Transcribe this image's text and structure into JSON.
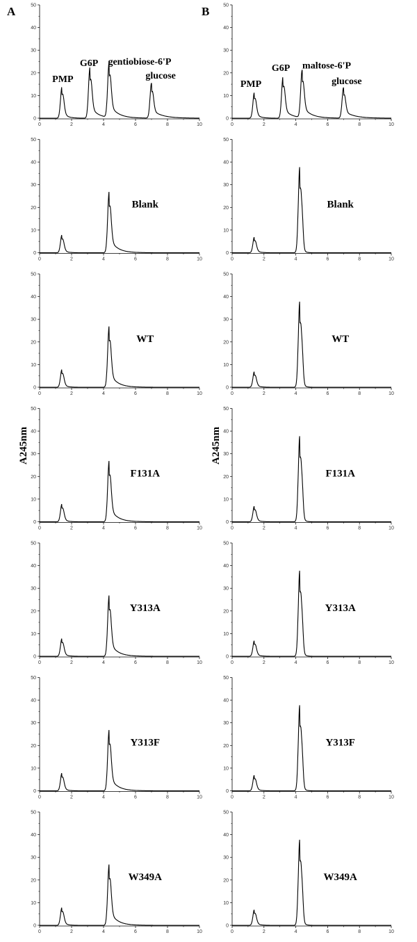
{
  "chart_data": {
    "type": "line",
    "panel_letters": [
      "A",
      "B"
    ],
    "ylabel": "A245nm",
    "xlim": [
      0,
      10
    ],
    "ylim": [
      0,
      50
    ],
    "xticks": [
      "0",
      "2",
      "4",
      "6",
      "8",
      "10"
    ],
    "yticks": [
      "0",
      "10",
      "20",
      "30",
      "40",
      "50"
    ],
    "columns": [
      {
        "letter": "A",
        "standards": {
          "peaks": [
            {
              "name": "PMP",
              "rt": 1.4,
              "height": 14,
              "tail": 0.25
            },
            {
              "name": "G6P",
              "rt": 3.15,
              "height": 22.5,
              "tail": 0.45
            },
            {
              "name": "gentiobiose-6'P",
              "rt": 4.35,
              "height": 24.5,
              "tail": 0.5
            },
            {
              "name": "glucose",
              "rt": 7.0,
              "height": 15.5,
              "tail": 0.6
            }
          ]
        },
        "samples": [
          {
            "label": "Blank",
            "peaks": [
              {
                "rt": 1.4,
                "height": 8,
                "tail": 0.2
              },
              {
                "rt": 4.35,
                "height": 27,
                "tail": 0.45
              }
            ]
          },
          {
            "label": "WT",
            "peaks": [
              {
                "rt": 1.4,
                "height": 8,
                "tail": 0.2
              },
              {
                "rt": 4.35,
                "height": 27,
                "tail": 0.45
              }
            ]
          },
          {
            "label": "F131A",
            "peaks": [
              {
                "rt": 1.4,
                "height": 8,
                "tail": 0.2
              },
              {
                "rt": 4.35,
                "height": 27,
                "tail": 0.45
              }
            ]
          },
          {
            "label": "Y313A",
            "peaks": [
              {
                "rt": 1.4,
                "height": 8,
                "tail": 0.2
              },
              {
                "rt": 4.35,
                "height": 27,
                "tail": 0.45
              }
            ]
          },
          {
            "label": "Y313F",
            "peaks": [
              {
                "rt": 1.4,
                "height": 8,
                "tail": 0.2
              },
              {
                "rt": 4.35,
                "height": 27,
                "tail": 0.45
              }
            ]
          },
          {
            "label": "W349A",
            "peaks": [
              {
                "rt": 1.4,
                "height": 8,
                "tail": 0.2
              },
              {
                "rt": 4.35,
                "height": 27,
                "tail": 0.45
              }
            ]
          }
        ]
      },
      {
        "letter": "B",
        "standards": {
          "peaks": [
            {
              "name": "PMP",
              "rt": 1.4,
              "height": 11.5,
              "tail": 0.25
            },
            {
              "name": "G6P",
              "rt": 3.2,
              "height": 18.5,
              "tail": 0.45
            },
            {
              "name": "maltose-6'P",
              "rt": 4.4,
              "height": 21,
              "tail": 0.5
            },
            {
              "name": "glucose",
              "rt": 7.0,
              "height": 13.5,
              "tail": 0.6
            }
          ]
        },
        "samples": [
          {
            "label": "Blank",
            "peaks": [
              {
                "rt": 1.4,
                "height": 7,
                "tail": 0.2
              },
              {
                "rt": 4.25,
                "height": 38,
                "tail": 0.12
              }
            ]
          },
          {
            "label": "WT",
            "peaks": [
              {
                "rt": 1.4,
                "height": 7,
                "tail": 0.2
              },
              {
                "rt": 4.25,
                "height": 38,
                "tail": 0.12
              }
            ]
          },
          {
            "label": "F131A",
            "peaks": [
              {
                "rt": 1.4,
                "height": 7,
                "tail": 0.2
              },
              {
                "rt": 4.25,
                "height": 38,
                "tail": 0.12
              }
            ]
          },
          {
            "label": "Y313A",
            "peaks": [
              {
                "rt": 1.4,
                "height": 7,
                "tail": 0.2
              },
              {
                "rt": 4.25,
                "height": 38,
                "tail": 0.12
              }
            ]
          },
          {
            "label": "Y313F",
            "peaks": [
              {
                "rt": 1.4,
                "height": 7,
                "tail": 0.2
              },
              {
                "rt": 4.25,
                "height": 38,
                "tail": 0.12
              }
            ]
          },
          {
            "label": "W349A",
            "peaks": [
              {
                "rt": 1.4,
                "height": 7,
                "tail": 0.2
              },
              {
                "rt": 4.25,
                "height": 38,
                "tail": 0.12
              }
            ]
          }
        ]
      }
    ]
  }
}
